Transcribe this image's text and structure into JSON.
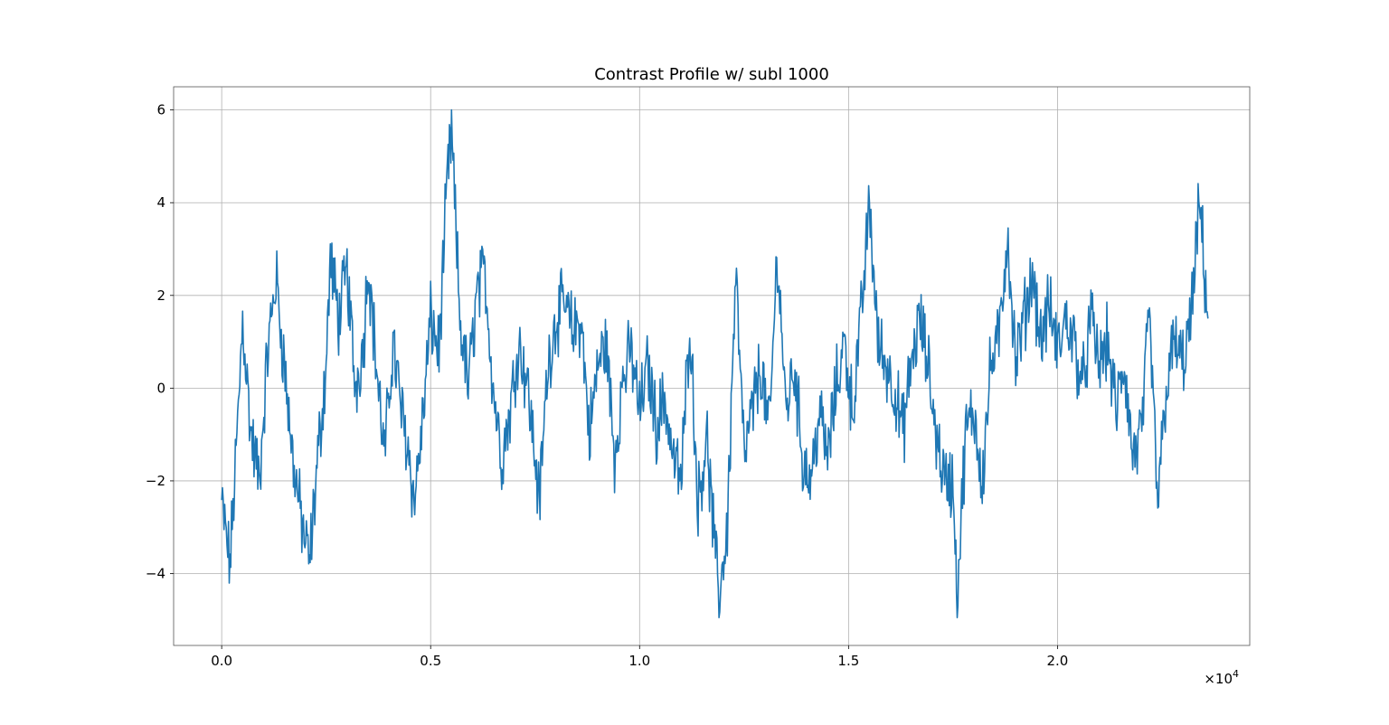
{
  "chart_data": {
    "type": "line",
    "title": "Contrast Profile w/ subl 1000",
    "xlabel": "",
    "ylabel": "",
    "x_multiplier_label": "×10",
    "x_multiplier_exponent": "4",
    "xlim": [
      -1150,
      24600
    ],
    "ylim": [
      -5.55,
      6.5
    ],
    "x_ticks": [
      0,
      5000,
      10000,
      15000,
      20000
    ],
    "x_tick_labels": [
      "0.0",
      "0.5",
      "1.0",
      "1.5",
      "2.0"
    ],
    "y_ticks": [
      -4,
      -2,
      0,
      2,
      4,
      6
    ],
    "y_tick_labels": [
      "−4",
      "−2",
      "0",
      "2",
      "4",
      "6"
    ],
    "grid": true,
    "color": "#1f77b4",
    "series": [
      {
        "x": [
          0,
          200,
          400,
          500,
          700,
          900,
          1100,
          1300,
          1500,
          1700,
          1900,
          2100,
          2300,
          2500,
          2600,
          2800,
          3000,
          3200,
          3400,
          3500,
          3700,
          3900,
          4100,
          4300,
          4500,
          4600,
          4800,
          5000,
          5200,
          5400,
          5500,
          5700,
          5900,
          6100,
          6300,
          6500,
          6700,
          6900,
          7100,
          7300,
          7500,
          7600,
          7800,
          8000,
          8200,
          8400,
          8600,
          8800,
          9000,
          9200,
          9400,
          9600,
          9800,
          10000,
          10200,
          10400,
          10600,
          10800,
          11000,
          11200,
          11400,
          11600,
          11800,
          11900,
          12100,
          12300,
          12500,
          12700,
          12900,
          13100,
          13300,
          13500,
          13700,
          13900,
          14100,
          14300,
          14500,
          14700,
          14900,
          15100,
          15300,
          15500,
          15700,
          15900,
          16100,
          16300,
          16500,
          16700,
          16900,
          17100,
          17300,
          17500,
          17600,
          17800,
          18000,
          18200,
          18400,
          18600,
          18800,
          19000,
          19200,
          19400,
          19600,
          19800,
          20000,
          20200,
          20400,
          20600,
          20800,
          21000,
          21200,
          21400,
          21600,
          21800,
          22000,
          22200,
          22400,
          22600,
          22800,
          23000,
          23200,
          23400,
          23600
        ],
        "y": [
          -2.5,
          -3.8,
          -0.5,
          1.5,
          -1.0,
          -2.0,
          0.8,
          2.4,
          0.5,
          -1.5,
          -2.8,
          -3.8,
          -1.5,
          0.5,
          2.8,
          1.5,
          2.5,
          0.0,
          1.0,
          2.8,
          0.5,
          -1.5,
          1.0,
          -0.5,
          -1.5,
          -2.5,
          -0.8,
          1.5,
          0.8,
          4.5,
          5.5,
          1.5,
          0.0,
          2.0,
          2.5,
          0.0,
          -1.5,
          -0.5,
          1.0,
          0.2,
          -1.5,
          -2.5,
          0.5,
          1.5,
          1.8,
          1.2,
          1.5,
          -1.0,
          0.5,
          1.0,
          -1.5,
          0.2,
          0.8,
          -0.5,
          0.5,
          -0.8,
          -0.2,
          -1.5,
          -2.0,
          1.5,
          -2.5,
          -1.0,
          -3.5,
          -4.5,
          -3.0,
          2.5,
          -1.5,
          -0.5,
          0.5,
          -1.0,
          3.0,
          -0.5,
          0.5,
          -1.5,
          -2.0,
          -0.5,
          -1.5,
          0.0,
          1.0,
          -0.5,
          1.5,
          4.0,
          1.0,
          0.5,
          0.0,
          -1.0,
          0.5,
          1.5,
          0.5,
          -1.0,
          -2.0,
          -2.0,
          -4.5,
          -1.0,
          -0.5,
          -2.0,
          0.5,
          1.0,
          3.4,
          0.5,
          1.5,
          2.5,
          1.0,
          1.8,
          0.8,
          1.5,
          1.0,
          0.0,
          1.5,
          0.5,
          1.0,
          -0.5,
          0.5,
          -1.5,
          -1.0,
          1.5,
          -2.5,
          0.0,
          1.0,
          0.5,
          1.5,
          4.0,
          1.5
        ]
      }
    ]
  }
}
